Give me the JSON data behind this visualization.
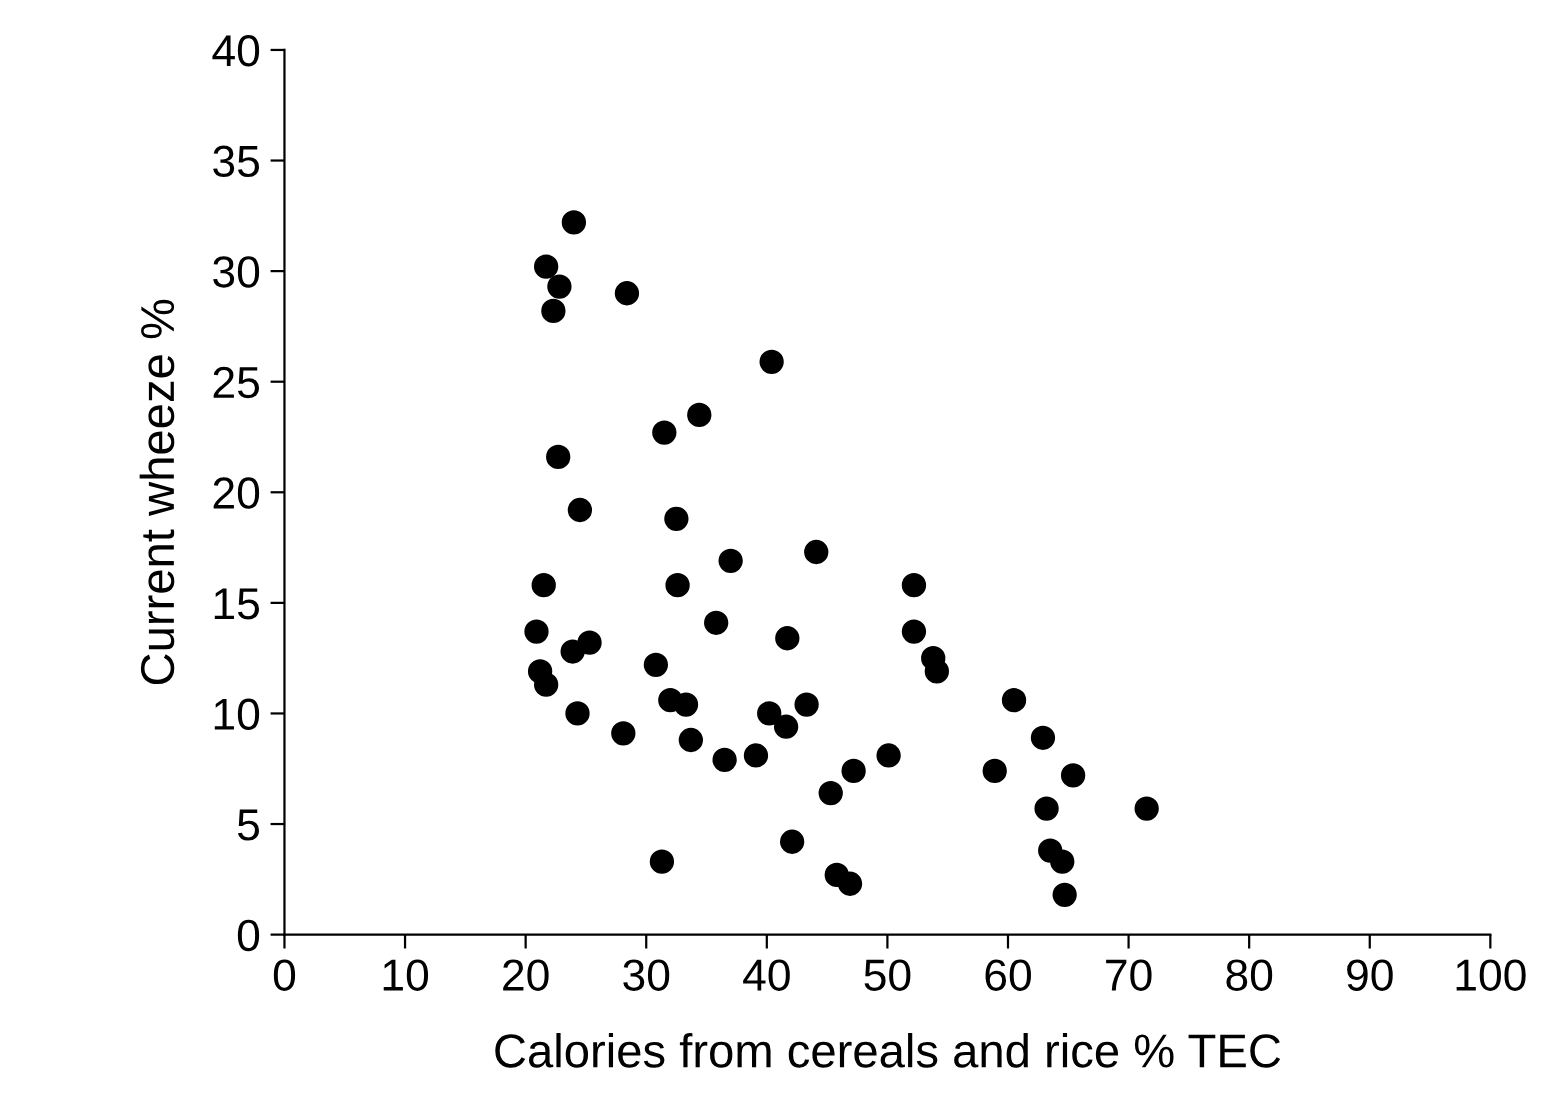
{
  "chart_data": {
    "type": "scatter",
    "xlabel": "Calories from cereals and rice % TEC",
    "ylabel": "Current wheeze %",
    "xlim": [
      0,
      100
    ],
    "ylim": [
      0,
      40
    ],
    "xticks": [
      0,
      10,
      20,
      30,
      40,
      50,
      60,
      70,
      80,
      90,
      100
    ],
    "yticks": [
      0,
      5,
      10,
      15,
      20,
      25,
      30,
      35,
      40
    ],
    "grid": false,
    "legend": false,
    "marker": "circle",
    "series": [
      {
        "color": "#000000",
        "x": [
          24.0,
          21.7,
          22.8,
          22.3,
          28.4,
          40.4,
          34.4,
          31.5,
          22.7,
          24.5,
          32.5,
          37.0,
          44.1,
          21.5,
          32.6,
          52.2,
          35.8,
          20.9,
          41.7,
          52.2,
          25.3,
          23.9,
          30.8,
          21.2,
          21.7,
          32.0,
          33.3,
          43.3,
          40.2,
          41.6,
          24.3,
          28.1,
          33.7,
          36.5,
          39.1,
          50.1,
          47.2,
          45.3,
          42.1,
          31.3,
          45.8,
          46.9,
          53.8,
          54.1,
          60.5,
          62.9,
          58.9,
          65.4,
          63.2,
          71.5,
          63.5,
          64.5,
          64.7
        ],
        "values": [
          32.2,
          30.2,
          29.3,
          28.2,
          29.0,
          25.9,
          23.5,
          22.7,
          21.6,
          19.2,
          18.8,
          16.9,
          17.3,
          15.8,
          15.8,
          15.8,
          14.1,
          13.7,
          13.4,
          13.7,
          13.2,
          12.8,
          12.2,
          11.9,
          11.3,
          10.6,
          10.4,
          10.4,
          10.0,
          9.4,
          10.0,
          9.1,
          8.8,
          7.9,
          8.1,
          8.1,
          7.4,
          6.4,
          4.2,
          3.3,
          2.7,
          2.3,
          12.5,
          11.9,
          10.6,
          8.9,
          7.4,
          7.2,
          5.7,
          5.7,
          3.8,
          3.3,
          1.8
        ]
      }
    ]
  }
}
